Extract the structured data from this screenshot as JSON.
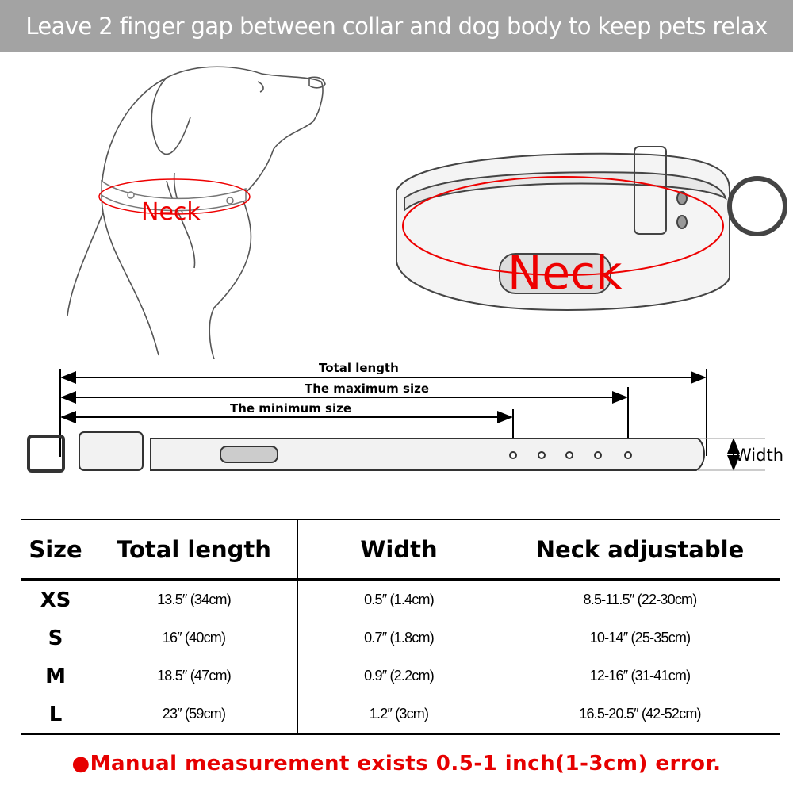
{
  "banner": {
    "text": "Leave 2 finger gap between collar and dog body to keep pets relax"
  },
  "dog_illustration": {
    "neck_label": "Neck"
  },
  "collar_illustration": {
    "neck_label": "Neck"
  },
  "measure_diagram": {
    "total_length": "Total length",
    "maximum_size": "The maximum size",
    "minimum_size": "The minimum size",
    "width": "Width"
  },
  "size_table": {
    "headers": [
      "Size",
      "Total length",
      "Width",
      "Neck adjustable"
    ],
    "rows": [
      {
        "size": "XS",
        "total_length": "13.5″ (34cm)",
        "width": "0.5″ (1.4cm)",
        "neck": "8.5-11.5″ (22-30cm)"
      },
      {
        "size": "S",
        "total_length": "16″ (40cm)",
        "width": "0.7″ (1.8cm)",
        "neck": "10-14″ (25-35cm)"
      },
      {
        "size": "M",
        "total_length": "18.5″ (47cm)",
        "width": "0.9″ (2.2cm)",
        "neck": "12-16″ (31-41cm)"
      },
      {
        "size": "L",
        "total_length": "23″ (59cm)",
        "width": "1.2″ (3cm)",
        "neck": "16.5-20.5″ (42-52cm)"
      }
    ]
  },
  "note": {
    "text": "●Manual measurement exists 0.5-1 inch(1-3cm) error.",
    "color": "#e60000"
  },
  "colors": {
    "banner_bg": "#a3a3a3",
    "accent_red": "#e00000"
  }
}
